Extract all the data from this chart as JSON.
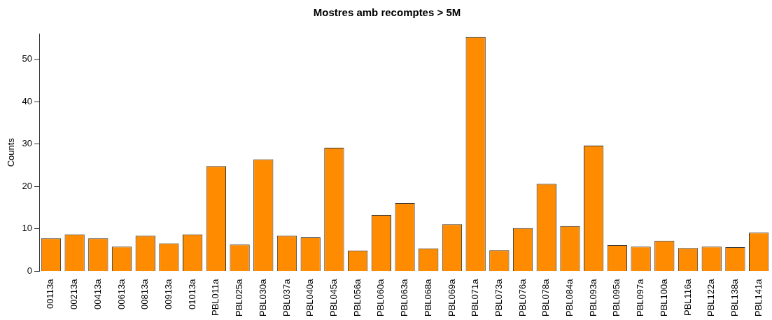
{
  "chart_data": {
    "type": "bar",
    "title": "Mostres amb recomptes > 5M",
    "ylabel": "Counts",
    "categories": [
      "00113a",
      "00213a",
      "00413a",
      "00613a",
      "00813a",
      "00913a",
      "01013a",
      "PBL011a",
      "PBL025a",
      "PBL030a",
      "PBL037a",
      "PBL040a",
      "PBL045a",
      "PBL056a",
      "PBL060a",
      "PBL063a",
      "PBL068a",
      "PBL069a",
      "PBL071a",
      "PBL073a",
      "PBL076a",
      "PBL078a",
      "PBL084a",
      "PBL093a",
      "PBL095a",
      "PBL097a",
      "PBL100a",
      "PBL116a",
      "PBL122a",
      "PBL138a",
      "PBL141a"
    ],
    "values": [
      7.8,
      8.7,
      7.8,
      5.8,
      8.4,
      6.6,
      8.7,
      24.8,
      6.3,
      26.4,
      8.4,
      8.0,
      29.1,
      4.9,
      13.3,
      16.1,
      5.4,
      11.1,
      55.2,
      5.0,
      10.2,
      20.6,
      10.7,
      29.6,
      6.2,
      5.8,
      7.2,
      5.5,
      5.8,
      5.7,
      9.1
    ],
    "color": "#ff8c00",
    "ylim": [
      0,
      56
    ],
    "yticks": [
      0,
      10,
      20,
      30,
      40,
      50
    ],
    "grid": false,
    "legend": false
  }
}
